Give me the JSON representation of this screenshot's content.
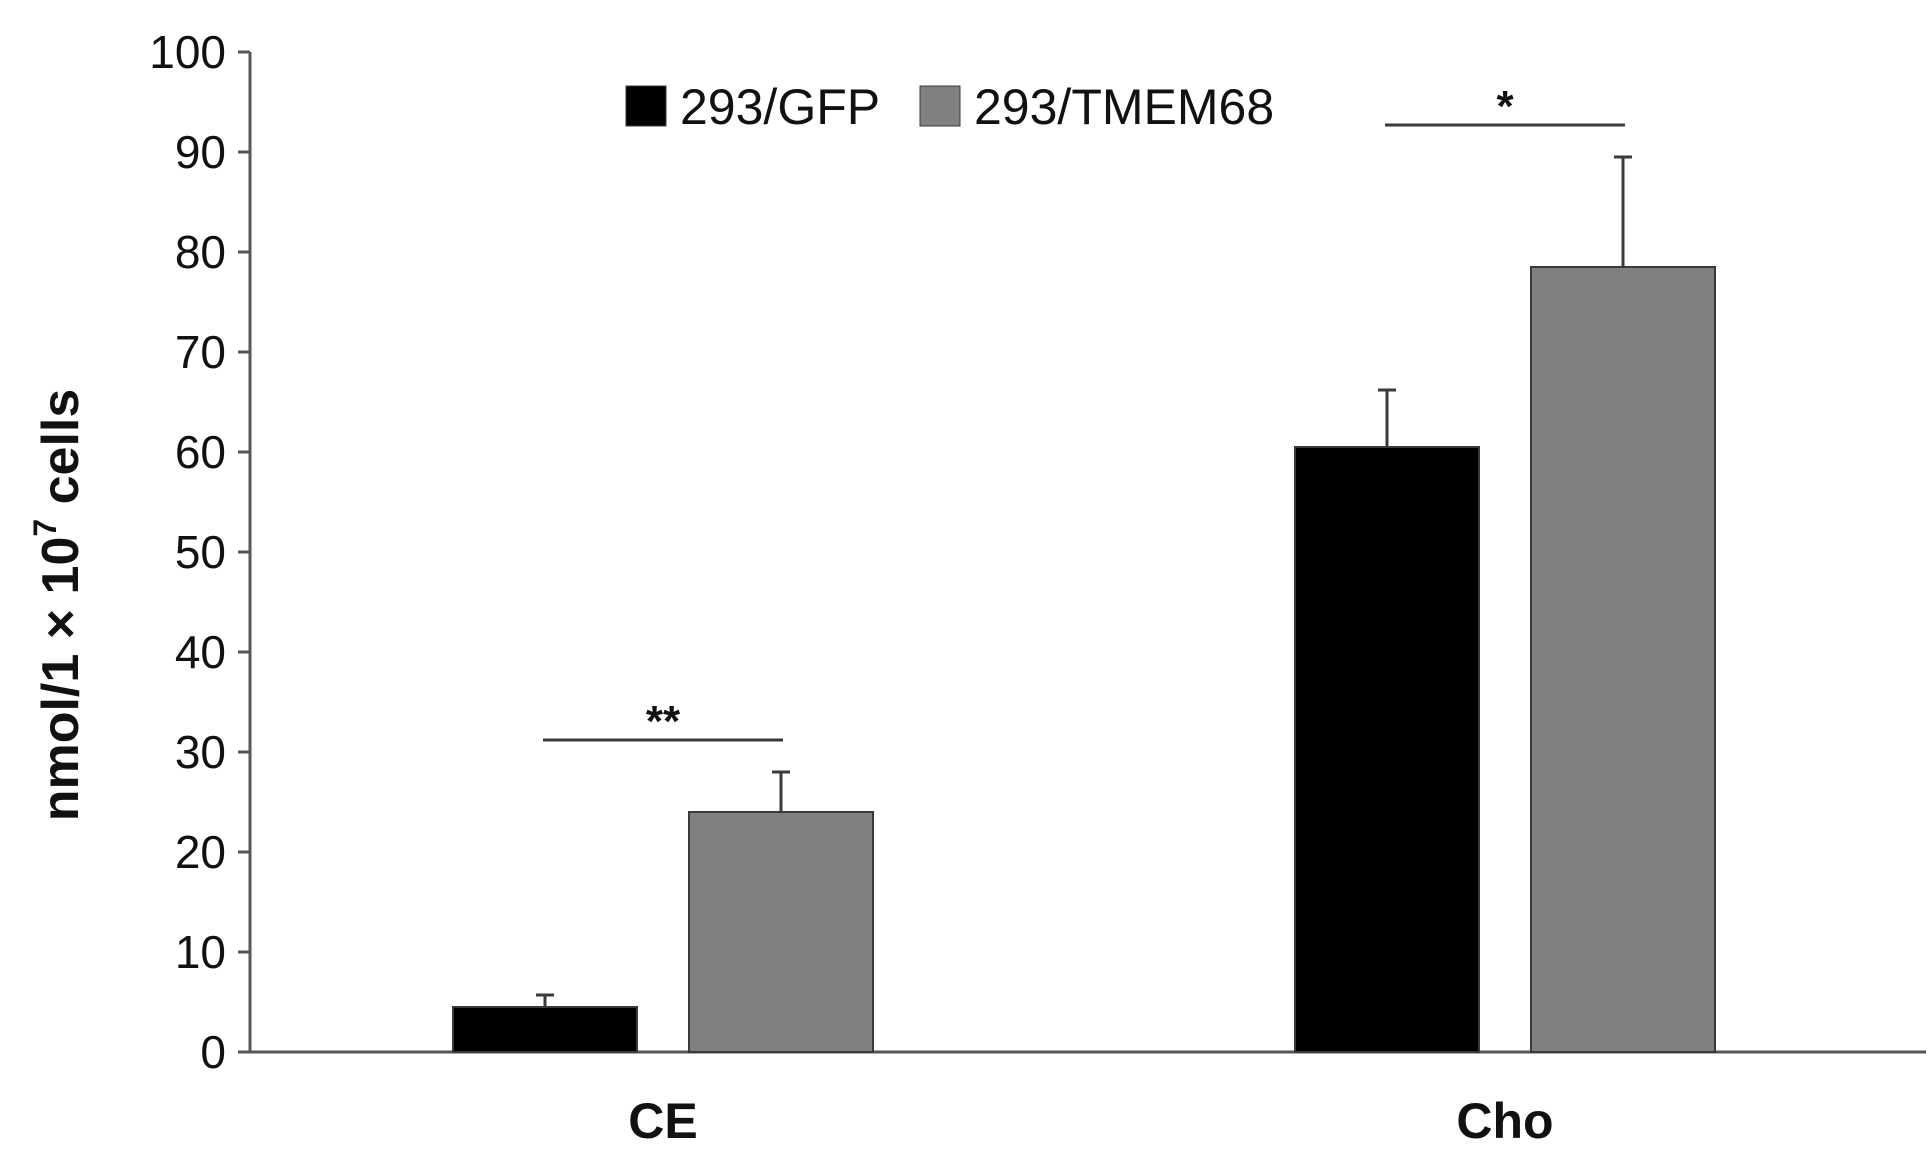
{
  "chart_data": {
    "type": "bar",
    "categories": [
      "CE",
      "Cho"
    ],
    "series": [
      {
        "name": "293/GFP",
        "color": "#000000",
        "values": [
          4.5,
          60.5
        ],
        "errors": [
          1.2,
          5.7
        ]
      },
      {
        "name": "293/TMEM68",
        "color": "#808080",
        "values": [
          24,
          78.5
        ],
        "errors": [
          4,
          11
        ]
      }
    ],
    "ylabel": {
      "prefix": "nmol/1 × 10",
      "exp": "7",
      "suffix": " cells"
    },
    "ylim": [
      0,
      100
    ],
    "yticks": [
      0,
      10,
      20,
      30,
      40,
      50,
      60,
      70,
      80,
      90,
      100
    ],
    "grid": false,
    "legend_position": "top-center",
    "significance": [
      {
        "category": "CE",
        "label": "**"
      },
      {
        "category": "Cho",
        "label": "*"
      }
    ]
  }
}
